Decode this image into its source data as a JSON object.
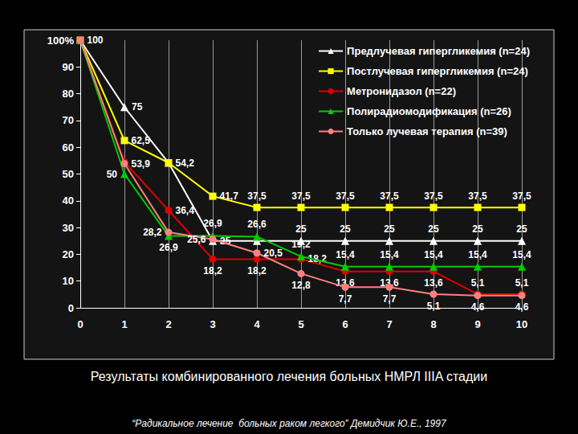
{
  "chart_data": {
    "type": "line",
    "title": "Результаты комбинированного лечения больных НМРЛ IIIA стадии",
    "subtitle": "“Радикальное лечение  больных раком легкого” Демидчик Ю.Е., 1997",
    "x": [
      0,
      1,
      2,
      3,
      4,
      5,
      6,
      7,
      8,
      9,
      10
    ],
    "xlim": [
      0,
      10
    ],
    "xticks": [
      0,
      1,
      2,
      3,
      4,
      5,
      6,
      7,
      8,
      9,
      10
    ],
    "ylim": [
      0,
      100
    ],
    "yticks": [
      0,
      10,
      20,
      30,
      40,
      50,
      60,
      70,
      80,
      90,
      {
        "value": 100,
        "label": "100%"
      }
    ],
    "grid": true,
    "legend": "upper right",
    "data_labels": true,
    "series": [
      {
        "name": "Предлучевая гипергликемия (n=24)",
        "color": "#ffffff",
        "marker": "triangle",
        "values": [
          100,
          75,
          54.2,
          25,
          25,
          25,
          25,
          25,
          25,
          25,
          25
        ],
        "value_labels": [
          null,
          "75",
          null,
          "25",
          null,
          "25",
          "25",
          "25",
          "25",
          "25",
          "25"
        ]
      },
      {
        "name": "Постлучевая гипергликемия (n=24)",
        "color": "#ffff00",
        "marker": "square",
        "values": [
          100,
          62.5,
          54.2,
          41.7,
          37.5,
          37.5,
          37.5,
          37.5,
          37.5,
          37.5,
          37.5
        ],
        "value_labels": [
          "100",
          "62,5",
          "54,2",
          "41,7",
          "37,5",
          "37,5",
          "37,5",
          "37,5",
          "37,5",
          "37,5",
          "37,5"
        ]
      },
      {
        "name": "Метронидазол (n=22)",
        "color": "#dd0000",
        "marker": "circle",
        "values": [
          100,
          54.5,
          36.4,
          18.2,
          18.2,
          18.2,
          13.6,
          13.6,
          13.6,
          5.1,
          5.1
        ],
        "value_labels": [
          null,
          null,
          "36,4",
          "18,2",
          "18,2",
          "18,2",
          "13,6",
          "13,6",
          "13,6",
          "5,1",
          "5,1"
        ]
      },
      {
        "name": "Полирадиомодификация (n=26)",
        "color": "#00cc00",
        "marker": "triangle",
        "values": [
          100,
          50,
          26.9,
          26.9,
          26.6,
          19.2,
          15.4,
          15.4,
          15.4,
          15.4,
          15.4
        ],
        "value_labels": [
          null,
          "50",
          "26,9",
          "26,9",
          "26,6",
          "19,2",
          "15,4",
          "15,4",
          "15,4",
          "15,4",
          "15,4"
        ]
      },
      {
        "name": "Только лучевая терапия (n=39)",
        "color": "#ff8080",
        "marker": "circle",
        "values": [
          100,
          53.9,
          28.2,
          25.6,
          20.5,
          12.8,
          7.7,
          7.7,
          5.1,
          4.6,
          4.6
        ],
        "value_labels": [
          null,
          "53,9",
          "28,2",
          "25,6",
          "20,5",
          "12,8",
          "7,7",
          "7,7",
          "5,1",
          "4,6",
          "4,6"
        ]
      }
    ]
  }
}
